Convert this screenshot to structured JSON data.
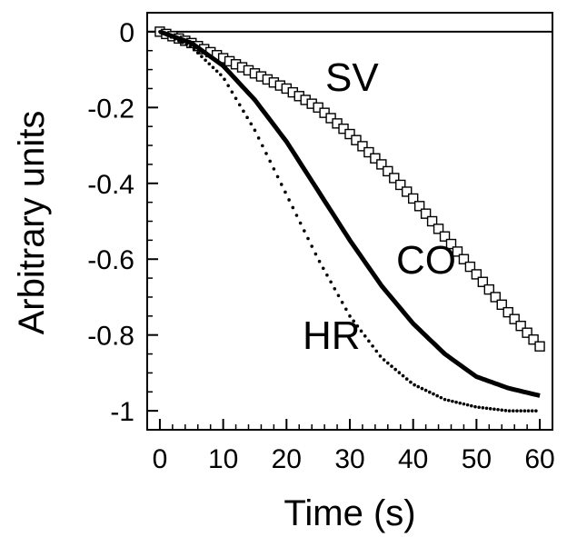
{
  "chart_data": {
    "type": "line",
    "title": "",
    "xlabel": "Time (s)",
    "ylabel": "Arbitrary units",
    "xlim": [
      -2,
      62
    ],
    "ylim": [
      -1.05,
      0.05
    ],
    "xticks": [
      0,
      10,
      20,
      30,
      40,
      50,
      60
    ],
    "yticks": [
      0,
      -0.2,
      -0.4,
      -0.6,
      -0.8,
      -1
    ],
    "xtick_labels": [
      "0",
      "10",
      "20",
      "30",
      "40",
      "50",
      "60"
    ],
    "ytick_labels": [
      "0",
      "-0.2",
      "-0.4",
      "-0.6",
      "-0.8",
      "-1"
    ],
    "reference_line": 0,
    "grid": false,
    "series": [
      {
        "name": "SV",
        "style": "open-square markers",
        "x": [
          0,
          5,
          10,
          15,
          20,
          25,
          30,
          35,
          40,
          45,
          50,
          55,
          60
        ],
        "y": [
          0,
          -0.03,
          -0.07,
          -0.11,
          -0.15,
          -0.2,
          -0.27,
          -0.35,
          -0.44,
          -0.54,
          -0.64,
          -0.74,
          -0.83
        ]
      },
      {
        "name": "CO",
        "style": "thick solid line",
        "x": [
          0,
          5,
          10,
          15,
          20,
          25,
          30,
          35,
          40,
          45,
          50,
          55,
          60
        ],
        "y": [
          0,
          -0.03,
          -0.09,
          -0.18,
          -0.29,
          -0.42,
          -0.55,
          -0.67,
          -0.77,
          -0.85,
          -0.91,
          -0.94,
          -0.96
        ]
      },
      {
        "name": "HR",
        "style": "dotted line",
        "x": [
          0,
          5,
          10,
          15,
          20,
          25,
          30,
          35,
          40,
          45,
          50,
          55,
          60
        ],
        "y": [
          0,
          -0.04,
          -0.12,
          -0.26,
          -0.43,
          -0.6,
          -0.75,
          -0.86,
          -0.93,
          -0.97,
          -0.99,
          -1.0,
          -1.0
        ]
      }
    ],
    "annotations": [
      "SV",
      "CO",
      "HR"
    ]
  }
}
